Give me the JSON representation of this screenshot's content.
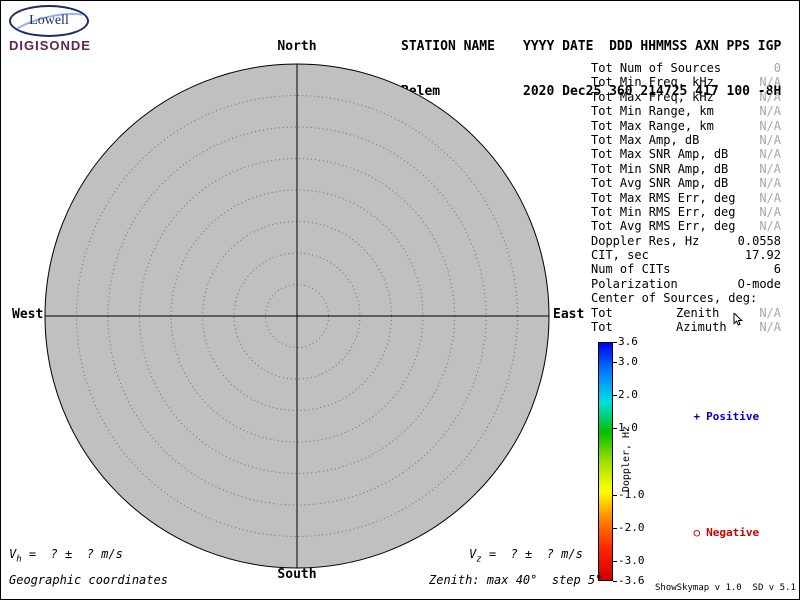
{
  "logo": {
    "name": "Lowell",
    "product": "DIGISONDE"
  },
  "header": {
    "station_label": "STATION NAME",
    "station_value": "Belem",
    "fields_label": "YYYY DATE  DDD HHMMSS AXN PPS IGP",
    "fields_value": "2020 Dec25 360 214725 417 100 -8H"
  },
  "skymap": {
    "type": "polar-skymap",
    "direction_north": "North",
    "direction_south": "South",
    "direction_east": "East",
    "direction_west": "West",
    "fill_color": "#c0c0c0",
    "zenith_max_deg": 40,
    "zenith_step_deg": 5,
    "sources": []
  },
  "stats": [
    {
      "label": "Tot Num of Sources",
      "value": "0",
      "muted": true
    },
    {
      "label": "Tot Min Freq, kHz",
      "value": "N/A",
      "muted": true
    },
    {
      "label": "Tot Max Freq, kHz",
      "value": "N/A",
      "muted": true
    },
    {
      "label": "Tot Min Range, km",
      "value": "N/A",
      "muted": true
    },
    {
      "label": "Tot Max Range, km",
      "value": "N/A",
      "muted": true
    },
    {
      "label": "Tot Max Amp, dB",
      "value": "N/A",
      "muted": true
    },
    {
      "label": "Tot Max SNR Amp, dB",
      "value": "N/A",
      "muted": true
    },
    {
      "label": "Tot Min SNR Amp, dB",
      "value": "N/A",
      "muted": true
    },
    {
      "label": "Tot Avg SNR Amp, dB",
      "value": "N/A",
      "muted": true
    },
    {
      "label": "Tot Max RMS Err, deg",
      "value": "N/A",
      "muted": true
    },
    {
      "label": "Tot Min RMS Err, deg",
      "value": "N/A",
      "muted": true
    },
    {
      "label": "Tot Avg RMS Err, deg",
      "value": "N/A",
      "muted": true
    },
    {
      "label": "Doppler Res, Hz",
      "value": "0.0558",
      "muted": false
    },
    {
      "label": "CIT, sec",
      "value": "17.92",
      "muted": false
    },
    {
      "label": "Num of CITs",
      "value": "6",
      "muted": false
    },
    {
      "label": "Polarization",
      "value": "O-mode",
      "muted": false
    },
    {
      "label": "Center of Sources, deg:",
      "value": "",
      "muted": false
    },
    {
      "label": "Tot",
      "mid": "Zenith",
      "value": "N/A",
      "muted": true
    },
    {
      "label": "Tot",
      "mid": "Azimuth",
      "value": "N/A",
      "muted": true
    }
  ],
  "colorbar": {
    "axis_label": "Doppler, Hz",
    "max": 3.6,
    "min": -3.6,
    "ticks": [
      3.6,
      3.0,
      2.0,
      1.0,
      -1.0,
      -2.0,
      -3.0,
      -3.6
    ],
    "gradient": [
      "#0000f0",
      "#0080ff",
      "#00e0e0",
      "#00c000",
      "#a0e000",
      "#ffff00",
      "#ff8000",
      "#ff2000",
      "#d00000"
    ]
  },
  "legend": {
    "positive_symbol": "+",
    "positive_label": "Positive",
    "positive_color": "#0000cc",
    "negative_symbol": "○",
    "negative_label": "Negative",
    "negative_color": "#cc0000"
  },
  "footer": {
    "vh": {
      "var": "V",
      "sub": "h",
      "rest": " =  ? ±  ? m/s"
    },
    "vz": {
      "var": "V",
      "sub": "z",
      "rest": " =  ? ±  ? m/s"
    },
    "coordinates": "Geographic coordinates",
    "zenith_info": "Zenith: max 40°  step 5°",
    "version": "ShowSkymap v 1.0  SD v 5.1"
  }
}
